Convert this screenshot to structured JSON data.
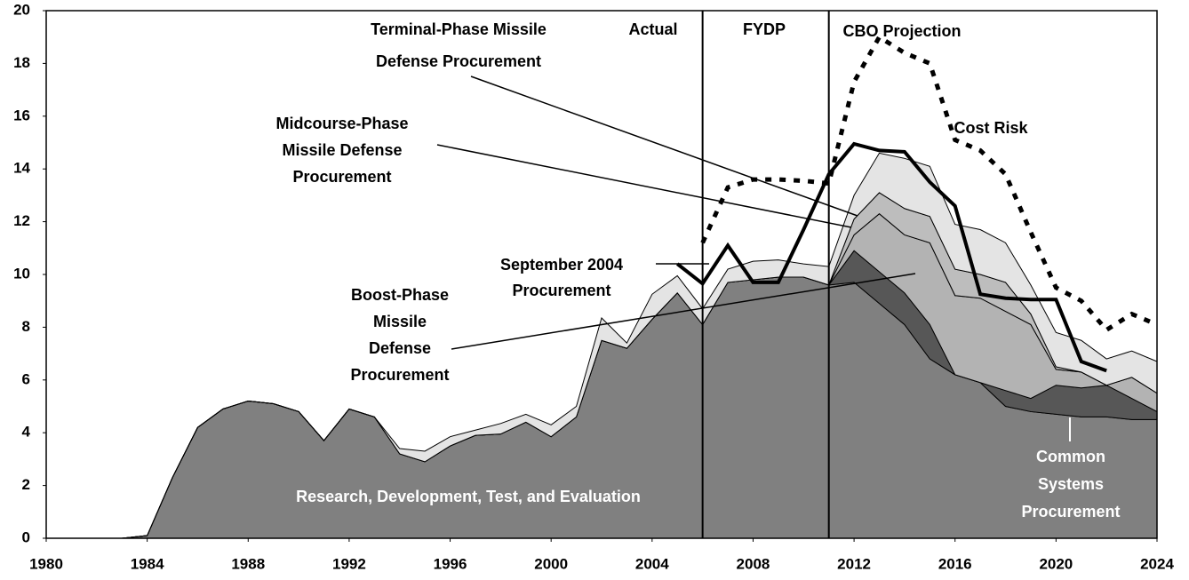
{
  "chart_data": {
    "type": "stacked-area",
    "x": [
      1980,
      1981,
      1982,
      1983,
      1984,
      1985,
      1986,
      1987,
      1988,
      1989,
      1990,
      1991,
      1992,
      1993,
      1994,
      1995,
      1996,
      1997,
      1998,
      1999,
      2000,
      2001,
      2002,
      2003,
      2004,
      2005,
      2006,
      2007,
      2008,
      2009,
      2010,
      2011,
      2012,
      2013,
      2014,
      2015,
      2016,
      2017,
      2018,
      2019,
      2020,
      2021,
      2022,
      2023,
      2024
    ],
    "series": [
      {
        "color": "#808080",
        "values": [
          0,
          0,
          0,
          0,
          0.1,
          2.3,
          4.2,
          4.9,
          5.2,
          5.1,
          4.8,
          3.7,
          4.9,
          4.6,
          3.2,
          2.9,
          3.5,
          3.9,
          3.95,
          4.4,
          3.85,
          4.6,
          7.5,
          7.2,
          8.3,
          9.3,
          8.1,
          9.7,
          9.8,
          9.9,
          9.9,
          9.6,
          9.7,
          8.9,
          8.1,
          6.8,
          6.2,
          5.9,
          5.0,
          4.8,
          4.7,
          4.6,
          4.6,
          4.5,
          4.5
        ]
      },
      {
        "color": "#575757",
        "values": [
          0,
          0,
          0,
          0,
          0,
          0,
          0,
          0,
          0,
          0,
          0,
          0,
          0,
          0,
          0,
          0,
          0,
          0,
          0,
          0,
          0,
          0,
          0,
          0,
          0,
          0,
          0,
          0,
          0,
          0,
          0,
          0,
          1.2,
          1.2,
          1.2,
          1.3,
          0,
          0,
          0.6,
          0.5,
          1.1,
          1.1,
          1.2,
          0.8,
          0.3
        ]
      },
      {
        "color": "#b3b3b3",
        "values": [
          0,
          0,
          0,
          0,
          0,
          0,
          0,
          0,
          0,
          0,
          0,
          0,
          0,
          0,
          0,
          0,
          0,
          0,
          0,
          0,
          0,
          0,
          0,
          0,
          0,
          0,
          0,
          0,
          0,
          0,
          0,
          0,
          0.6,
          2.2,
          2.2,
          3.1,
          3.0,
          3.2,
          3.0,
          2.8,
          0.6,
          0.6,
          0,
          0.8,
          0.7
        ]
      },
      {
        "color": "#bdbdbd",
        "values": [
          0,
          0,
          0,
          0,
          0,
          0,
          0,
          0,
          0,
          0,
          0,
          0,
          0,
          0,
          0,
          0,
          0,
          0,
          0,
          0,
          0,
          0,
          0,
          0,
          0,
          0,
          0,
          0,
          0,
          0,
          0,
          0,
          0.6,
          0.8,
          1.0,
          1.0,
          1.0,
          0.9,
          1.1,
          0.4,
          0.1,
          0,
          0,
          0,
          0
        ]
      },
      {
        "color": "#e4e4e4",
        "values": [
          0,
          0,
          0,
          0,
          0,
          0,
          0,
          0,
          0,
          0,
          0,
          0,
          0,
          0,
          0.2,
          0.4,
          0.35,
          0.2,
          0.4,
          0.3,
          0.45,
          0.4,
          0.85,
          0.2,
          0.95,
          0.65,
          0.6,
          0.5,
          0.7,
          0.65,
          0.5,
          0.7,
          0.9,
          1.5,
          1.9,
          1.9,
          1.7,
          1.7,
          1.5,
          1.1,
          1.3,
          1.2,
          1.0,
          1.0,
          1.2
        ]
      }
    ],
    "lines": [
      {
        "style": "solid",
        "color": "#000000",
        "x": [
          2005,
          2006,
          2007,
          2008,
          2009,
          2010,
          2011,
          2012,
          2013,
          2014,
          2015,
          2016,
          2017,
          2018,
          2019,
          2020,
          2021,
          2022
        ],
        "values": [
          10.4,
          9.65,
          11.1,
          9.7,
          9.7,
          11.7,
          13.8,
          14.95,
          14.7,
          14.65,
          13.5,
          12.6,
          9.25,
          9.1,
          9.05,
          9.05,
          6.7,
          6.35
        ]
      },
      {
        "style": "dotted",
        "color": "#000000",
        "x": [
          2006,
          2007,
          2008,
          2009,
          2010,
          2011,
          2012,
          2013,
          2014,
          2015,
          2016,
          2017,
          2018,
          2019,
          2020,
          2021,
          2022,
          2023,
          2024
        ],
        "values": [
          11.2,
          13.3,
          13.6,
          13.6,
          13.55,
          13.45,
          17.3,
          19.0,
          18.4,
          18.0,
          15.1,
          14.7,
          13.8,
          11.6,
          9.5,
          9.0,
          7.9,
          8.5,
          8.1
        ]
      }
    ],
    "dividers": [
      2006,
      2011
    ],
    "annotations": [
      [
        "Actual"
      ],
      [
        "FYDP"
      ],
      [
        "CBO Projection"
      ],
      [
        "Terminal-Phase Missile",
        "Defense Procurement"
      ],
      [
        "Midcourse-Phase",
        "Missile Defense",
        "Procurement"
      ],
      [
        "September 2004",
        "Procurement"
      ],
      [
        "Boost-Phase",
        "Missile",
        "Defense",
        "Procurement"
      ],
      [
        "Cost Risk"
      ],
      [
        "Common",
        "Systems",
        "Procurement"
      ],
      [
        "Research, Development, Test, and Evaluation"
      ]
    ],
    "xlim": [
      1980,
      2024
    ],
    "xticks": [
      1980,
      1984,
      1988,
      1992,
      1996,
      2000,
      2004,
      2008,
      2012,
      2016,
      2020,
      2024
    ],
    "ylim": [
      0,
      20
    ],
    "yticks": [
      0,
      2,
      4,
      6,
      8,
      10,
      12,
      14,
      16,
      18,
      20
    ]
  }
}
